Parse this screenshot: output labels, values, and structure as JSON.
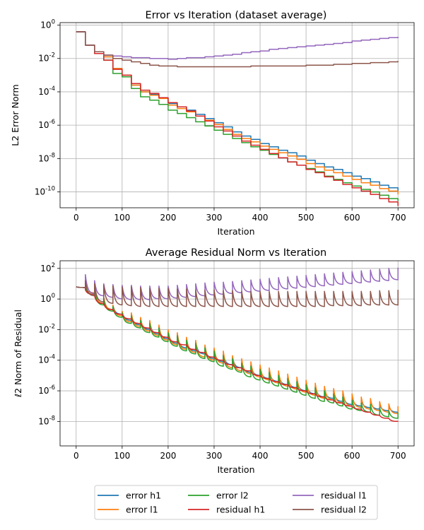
{
  "chart_data": [
    {
      "type": "line",
      "title": "Error vs Iteration (dataset average)",
      "xlabel": "Iteration",
      "ylabel": "L2 Error Norm",
      "yscale": "log",
      "xlim": [
        -35,
        735
      ],
      "ylim_log10": [
        -10.95,
        0.15
      ],
      "xticks": [
        0,
        100,
        200,
        300,
        400,
        500,
        600,
        700
      ],
      "yticks_exp": [
        -10,
        -8,
        -6,
        -4,
        -2,
        0
      ],
      "grid": true,
      "x": [
        0,
        20,
        40,
        60,
        80,
        100,
        120,
        140,
        160,
        180,
        200,
        220,
        240,
        260,
        280,
        300,
        320,
        340,
        360,
        380,
        400,
        420,
        440,
        460,
        480,
        500,
        520,
        540,
        560,
        580,
        600,
        620,
        640,
        660,
        680,
        700
      ],
      "series": [
        {
          "name": "error h1",
          "color": "#1f77b4",
          "log10": [
            -0.4,
            -1.2,
            -1.6,
            -1.9,
            -2.6,
            -3.0,
            -3.6,
            -4.0,
            -4.15,
            -4.35,
            -4.7,
            -4.9,
            -5.1,
            -5.35,
            -5.6,
            -5.85,
            -6.1,
            -6.4,
            -6.65,
            -6.85,
            -7.1,
            -7.3,
            -7.5,
            -7.65,
            -7.85,
            -8.1,
            -8.3,
            -8.5,
            -8.65,
            -8.85,
            -9.05,
            -9.2,
            -9.4,
            -9.6,
            -9.75,
            -9.95
          ]
        },
        {
          "name": "error l1",
          "color": "#ff7f0e",
          "log10": [
            -0.4,
            -1.2,
            -1.6,
            -1.9,
            -2.6,
            -3.0,
            -3.6,
            -4.0,
            -4.2,
            -4.4,
            -4.8,
            -5.0,
            -5.2,
            -5.45,
            -5.7,
            -5.95,
            -6.25,
            -6.55,
            -6.8,
            -7.0,
            -7.25,
            -7.45,
            -7.65,
            -7.85,
            -8.05,
            -8.3,
            -8.5,
            -8.7,
            -8.85,
            -9.05,
            -9.25,
            -9.45,
            -9.6,
            -9.8,
            -9.95,
            -10.15
          ]
        },
        {
          "name": "error l2",
          "color": "#2ca02c",
          "log10": [
            -0.4,
            -1.2,
            -1.7,
            -2.1,
            -2.9,
            -3.1,
            -3.8,
            -4.3,
            -4.5,
            -4.75,
            -5.1,
            -5.3,
            -5.55,
            -5.8,
            -6.05,
            -6.3,
            -6.55,
            -6.8,
            -7.05,
            -7.3,
            -7.5,
            -7.75,
            -7.95,
            -8.2,
            -8.4,
            -8.6,
            -8.8,
            -9.05,
            -9.25,
            -9.45,
            -9.65,
            -9.85,
            -10.0,
            -10.2,
            -10.4,
            -10.55
          ]
        },
        {
          "name": "residual h1",
          "color": "#d62728",
          "log10": [
            -0.4,
            -1.2,
            -1.7,
            -2.1,
            -2.65,
            -3.0,
            -3.5,
            -3.9,
            -4.1,
            -4.35,
            -4.65,
            -4.9,
            -5.15,
            -5.45,
            -5.75,
            -6.1,
            -6.35,
            -6.65,
            -6.95,
            -7.2,
            -7.45,
            -7.7,
            -7.95,
            -8.2,
            -8.4,
            -8.65,
            -8.85,
            -9.1,
            -9.3,
            -9.55,
            -9.75,
            -9.95,
            -10.15,
            -10.4,
            -10.6,
            -10.85
          ]
        },
        {
          "name": "residual l1",
          "color": "#9467bd",
          "log10": [
            -0.4,
            -1.2,
            -1.6,
            -1.8,
            -1.85,
            -1.9,
            -1.95,
            -1.95,
            -2.0,
            -2.0,
            -2.05,
            -2.0,
            -1.95,
            -1.95,
            -1.9,
            -1.85,
            -1.8,
            -1.75,
            -1.65,
            -1.6,
            -1.55,
            -1.45,
            -1.4,
            -1.35,
            -1.3,
            -1.25,
            -1.2,
            -1.15,
            -1.1,
            -1.05,
            -0.95,
            -0.9,
            -0.85,
            -0.8,
            -0.75,
            -0.7
          ]
        },
        {
          "name": "residual l2",
          "color": "#8c564b",
          "log10": [
            -0.4,
            -1.2,
            -1.6,
            -1.8,
            -2.0,
            -2.1,
            -2.2,
            -2.3,
            -2.4,
            -2.45,
            -2.45,
            -2.5,
            -2.5,
            -2.5,
            -2.5,
            -2.5,
            -2.5,
            -2.5,
            -2.5,
            -2.45,
            -2.45,
            -2.45,
            -2.45,
            -2.45,
            -2.45,
            -2.4,
            -2.4,
            -2.4,
            -2.35,
            -2.35,
            -2.3,
            -2.3,
            -2.25,
            -2.25,
            -2.2,
            -2.15
          ]
        }
      ]
    },
    {
      "type": "line",
      "title": "Average Residual Norm vs Iteration",
      "xlabel": "Iteration",
      "ylabel": "ℓ2 Norm of Residual",
      "yscale": "log",
      "xlim": [
        -35,
        735
      ],
      "ylim_log10": [
        -9.6,
        2.5
      ],
      "xticks": [
        0,
        100,
        200,
        300,
        400,
        500,
        600,
        700
      ],
      "yticks_exp": [
        -8,
        -6,
        -4,
        -2,
        0,
        2
      ],
      "grid": true,
      "x": [
        0,
        20,
        40,
        60,
        80,
        100,
        120,
        140,
        160,
        180,
        200,
        220,
        240,
        260,
        280,
        300,
        320,
        340,
        360,
        380,
        400,
        420,
        440,
        460,
        480,
        500,
        520,
        540,
        560,
        580,
        600,
        620,
        640,
        660,
        680,
        700
      ],
      "series": [
        {
          "name": "error h1",
          "color": "#1f77b4",
          "peaks_log10": [
            0.8,
            0.75,
            0.7,
            0.1,
            -0.4,
            -0.8,
            -1.0,
            -1.3,
            -1.5,
            -1.8,
            -2.1,
            -2.3,
            -2.6,
            -2.8,
            -3.1,
            -3.3,
            -3.6,
            -3.8,
            -4.1,
            -4.3,
            -4.5,
            -4.7,
            -4.9,
            -5.1,
            -5.3,
            -5.5,
            -5.7,
            -5.9,
            -6.0,
            -6.2,
            -6.4,
            -6.6,
            -6.7,
            -6.9,
            -7.0,
            -7.2
          ],
          "troughs_log10": [
            0.75,
            0.4,
            -0.3,
            -0.7,
            -1.0,
            -1.4,
            -1.7,
            -2.0,
            -2.3,
            -2.6,
            -2.9,
            -3.2,
            -3.4,
            -3.6,
            -3.9,
            -4.1,
            -4.3,
            -4.5,
            -4.8,
            -5.0,
            -5.2,
            -5.4,
            -5.6,
            -5.8,
            -6.0,
            -6.2,
            -6.4,
            -6.5,
            -6.7,
            -6.9,
            -7.0,
            -7.1,
            -7.2,
            -7.3,
            -7.4,
            -7.5
          ]
        },
        {
          "name": "error l1",
          "color": "#ff7f0e",
          "peaks_log10": [
            0.8,
            0.75,
            0.7,
            0.1,
            -0.4,
            -0.8,
            -0.9,
            -1.2,
            -1.4,
            -1.7,
            -2.0,
            -2.2,
            -2.5,
            -2.7,
            -3.0,
            -3.2,
            -3.4,
            -3.7,
            -3.9,
            -4.1,
            -4.3,
            -4.5,
            -4.7,
            -4.9,
            -5.1,
            -5.3,
            -5.5,
            -5.7,
            -5.85,
            -6.0,
            -6.2,
            -6.4,
            -6.5,
            -6.7,
            -6.85,
            -7.0
          ],
          "troughs_log10": [
            0.75,
            0.4,
            -0.3,
            -0.7,
            -1.1,
            -1.5,
            -1.8,
            -2.1,
            -2.4,
            -2.7,
            -3.0,
            -3.3,
            -3.5,
            -3.8,
            -4.0,
            -4.2,
            -4.5,
            -4.7,
            -4.9,
            -5.1,
            -5.3,
            -5.5,
            -5.7,
            -5.9,
            -6.1,
            -6.3,
            -6.5,
            -6.6,
            -6.8,
            -7.0,
            -7.1,
            -7.2,
            -7.3,
            -7.4,
            -7.5,
            -7.6
          ]
        },
        {
          "name": "error l2",
          "color": "#2ca02c",
          "peaks_log10": [
            0.8,
            0.75,
            0.6,
            0.0,
            -0.5,
            -0.9,
            -1.1,
            -1.4,
            -1.6,
            -1.9,
            -2.2,
            -2.4,
            -2.7,
            -2.9,
            -3.2,
            -3.4,
            -3.7,
            -3.9,
            -4.2,
            -4.4,
            -4.6,
            -4.8,
            -5.0,
            -5.2,
            -5.4,
            -5.6,
            -5.8,
            -6.0,
            -6.2,
            -6.4,
            -6.6,
            -6.8,
            -6.9,
            -7.1,
            -7.3,
            -7.4
          ],
          "troughs_log10": [
            0.75,
            0.3,
            -0.4,
            -0.8,
            -1.2,
            -1.6,
            -1.9,
            -2.2,
            -2.5,
            -2.8,
            -3.1,
            -3.4,
            -3.6,
            -3.9,
            -4.1,
            -4.4,
            -4.6,
            -4.8,
            -5.1,
            -5.3,
            -5.5,
            -5.7,
            -5.9,
            -6.1,
            -6.3,
            -6.5,
            -6.7,
            -6.8,
            -7.0,
            -7.2,
            -7.3,
            -7.4,
            -7.6,
            -7.7,
            -7.8,
            -7.9
          ]
        },
        {
          "name": "residual h1",
          "color": "#d62728",
          "peaks_log10": [
            0.8,
            0.6,
            0.2,
            -0.3,
            -0.7,
            -1.0,
            -1.3,
            -1.6,
            -1.9,
            -2.2,
            -2.5,
            -2.8,
            -3.0,
            -3.3,
            -3.5,
            -3.8,
            -4.0,
            -4.3,
            -4.5,
            -4.7,
            -5.0,
            -5.2,
            -5.4,
            -5.6,
            -5.8,
            -6.0,
            -6.2,
            -6.4,
            -6.6,
            -6.8,
            -7.0,
            -7.2,
            -7.4,
            -7.6,
            -7.8,
            -8.0
          ],
          "troughs_log10": [
            0.75,
            0.3,
            -0.3,
            -0.7,
            -1.0,
            -1.3,
            -1.6,
            -1.9,
            -2.2,
            -2.5,
            -2.8,
            -3.0,
            -3.3,
            -3.5,
            -3.8,
            -4.0,
            -4.3,
            -4.5,
            -4.7,
            -5.0,
            -5.2,
            -5.4,
            -5.6,
            -5.8,
            -6.0,
            -6.2,
            -6.4,
            -6.6,
            -6.8,
            -7.0,
            -7.2,
            -7.4,
            -7.6,
            -7.8,
            -8.0,
            -8.2
          ]
        },
        {
          "name": "residual l1",
          "color": "#9467bd",
          "peaks_log10": [
            0.8,
            1.6,
            1.2,
            1.0,
            0.95,
            0.9,
            0.9,
            0.85,
            0.85,
            0.85,
            0.85,
            0.9,
            0.95,
            1.0,
            1.05,
            1.1,
            1.1,
            1.15,
            1.2,
            1.25,
            1.3,
            1.35,
            1.4,
            1.45,
            1.5,
            1.55,
            1.6,
            1.65,
            1.7,
            1.75,
            1.8,
            1.85,
            1.9,
            1.95,
            2.0,
            2.05
          ],
          "troughs_log10": [
            0.75,
            0.35,
            0.2,
            0.1,
            0.0,
            -0.05,
            -0.05,
            -0.05,
            0.0,
            0.0,
            0.05,
            0.1,
            0.15,
            0.2,
            0.25,
            0.3,
            0.35,
            0.4,
            0.45,
            0.5,
            0.55,
            0.6,
            0.65,
            0.7,
            0.75,
            0.8,
            0.85,
            0.9,
            0.95,
            1.0,
            1.05,
            1.1,
            1.15,
            1.2,
            1.25,
            1.25
          ]
        },
        {
          "name": "residual l2",
          "color": "#8c564b",
          "peaks_log10": [
            0.8,
            1.2,
            1.0,
            0.9,
            0.85,
            0.8,
            0.8,
            0.75,
            0.7,
            0.7,
            0.7,
            0.65,
            0.65,
            0.6,
            0.6,
            0.6,
            0.55,
            0.55,
            0.5,
            0.5,
            0.5,
            0.5,
            0.5,
            0.5,
            0.5,
            0.5,
            0.5,
            0.5,
            0.5,
            0.5,
            0.5,
            0.5,
            0.5,
            0.55,
            0.55,
            0.6
          ],
          "troughs_log10": [
            0.75,
            0.2,
            -0.2,
            -0.3,
            -0.4,
            -0.45,
            -0.5,
            -0.5,
            -0.5,
            -0.5,
            -0.5,
            -0.5,
            -0.5,
            -0.5,
            -0.5,
            -0.5,
            -0.5,
            -0.5,
            -0.5,
            -0.5,
            -0.5,
            -0.5,
            -0.5,
            -0.5,
            -0.5,
            -0.5,
            -0.5,
            -0.45,
            -0.45,
            -0.45,
            -0.45,
            -0.4,
            -0.4,
            -0.4,
            -0.4,
            -0.35
          ]
        }
      ]
    }
  ],
  "legend": {
    "entries": [
      {
        "label": "error h1",
        "color": "#1f77b4"
      },
      {
        "label": "error l1",
        "color": "#ff7f0e"
      },
      {
        "label": "error l2",
        "color": "#2ca02c"
      },
      {
        "label": "residual h1",
        "color": "#d62728"
      },
      {
        "label": "residual l1",
        "color": "#9467bd"
      },
      {
        "label": "residual l2",
        "color": "#8c564b"
      }
    ]
  }
}
